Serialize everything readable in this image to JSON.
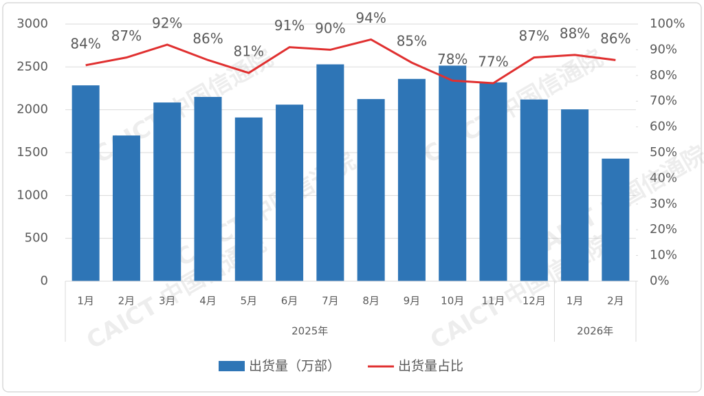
{
  "chart_data": {
    "type": "bar_line",
    "categories": [
      "1月",
      "2月",
      "3月",
      "4月",
      "5月",
      "6月",
      "7月",
      "8月",
      "9月",
      "10月",
      "11月",
      "12月",
      "1月",
      "2月"
    ],
    "x_groups": [
      {
        "label": "2025年",
        "count": 12
      },
      {
        "label": "2026年",
        "count": 2
      }
    ],
    "series": [
      {
        "name": "出货量（万部）",
        "color": "#2e75b6",
        "type": "bar",
        "axis": "y",
        "values": [
          2285,
          1700,
          2085,
          2150,
          1910,
          2060,
          2530,
          2125,
          2360,
          2515,
          2320,
          2120,
          2005,
          1430
        ]
      },
      {
        "name": "出货量占比",
        "color": "#e03030",
        "type": "line",
        "axis": "y2",
        "values": [
          84,
          87,
          92,
          86,
          81,
          91,
          90,
          94,
          85,
          78,
          77,
          87,
          88,
          86
        ],
        "value_labels": [
          "84%",
          "87%",
          "92%",
          "86%",
          "81%",
          "91%",
          "90%",
          "94%",
          "85%",
          "78%",
          "77%",
          "87%",
          "88%",
          "86%"
        ]
      }
    ],
    "ylim": [
      0,
      3000
    ],
    "yticks": [
      0,
      500,
      1000,
      1500,
      2000,
      2500,
      3000
    ],
    "y2lim": [
      0,
      100
    ],
    "y2ticks": [
      {
        "value": 0,
        "label": "0%"
      },
      {
        "value": 10,
        "label": "10%"
      },
      {
        "value": 20,
        "label": "20%"
      },
      {
        "value": 30,
        "label": "30%"
      },
      {
        "value": 40,
        "label": "40%"
      },
      {
        "value": 50,
        "label": "50%"
      },
      {
        "value": 60,
        "label": "60%"
      },
      {
        "value": 70,
        "label": "70%"
      },
      {
        "value": 80,
        "label": "80%"
      },
      {
        "value": 90,
        "label": "90%"
      },
      {
        "value": 100,
        "label": "100%"
      }
    ],
    "grid": true,
    "legend": "bottom",
    "watermark": "CAICT 中国信通院"
  }
}
